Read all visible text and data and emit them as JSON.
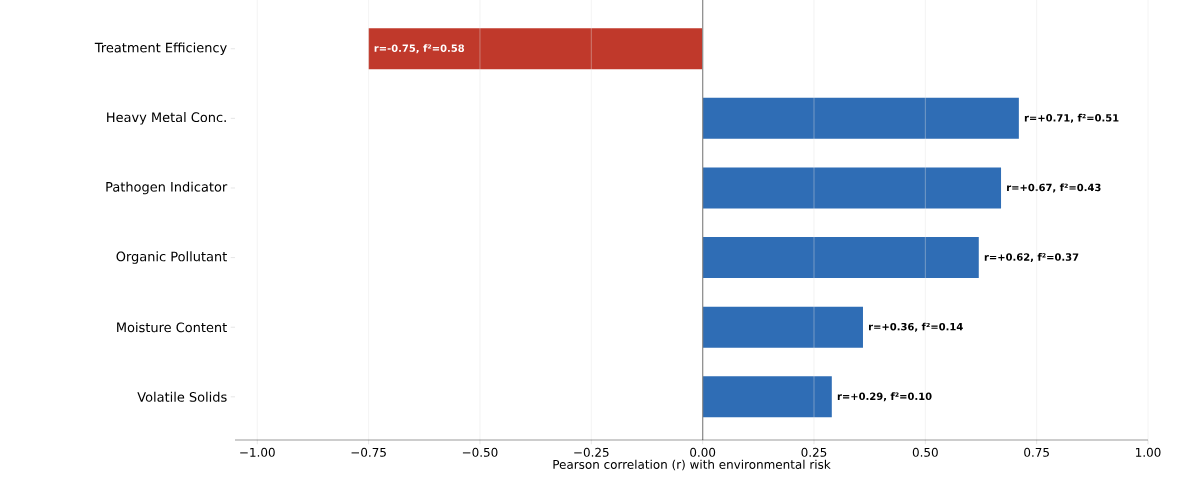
{
  "chart_data": {
    "type": "bar",
    "orientation": "horizontal",
    "xlabel": "Pearson correlation (r) with environmental risk",
    "categories": [
      "Treatment Efficiency",
      "Heavy Metal Conc.",
      "Pathogen Indicator",
      "Organic Pollutant",
      "Moisture Content",
      "Volatile Solids"
    ],
    "values": [
      -0.75,
      0.71,
      0.67,
      0.62,
      0.36,
      0.29
    ],
    "colors": [
      "#c0392b",
      "#2f6db5",
      "#2f6db5",
      "#2f6db5",
      "#2f6db5",
      "#2f6db5"
    ],
    "value_labels": [
      "r=-0.75, f²=0.58",
      "r=+0.71, f²=0.51",
      "r=+0.67, f²=0.43",
      "r=+0.62, f²=0.37",
      "r=+0.36, f²=0.14",
      "r=+0.29, f²=0.10"
    ],
    "xlim": [
      -1.05,
      1.0
    ],
    "xticks": [
      {
        "value": -1.0,
        "label": "−1.00"
      },
      {
        "value": -0.75,
        "label": "−0.75"
      },
      {
        "value": -0.5,
        "label": "−0.50"
      },
      {
        "value": -0.25,
        "label": "−0.25"
      },
      {
        "value": 0,
        "label": "0.00"
      },
      {
        "value": 0.25,
        "label": "0.25"
      },
      {
        "value": 0.5,
        "label": "0.50"
      },
      {
        "value": 0.75,
        "label": "0.75"
      },
      {
        "value": 1.0,
        "label": "1.00"
      }
    ],
    "grid": "x",
    "ref_lines": [
      {
        "axis": "x",
        "value": 0,
        "color": "#666666"
      }
    ]
  }
}
